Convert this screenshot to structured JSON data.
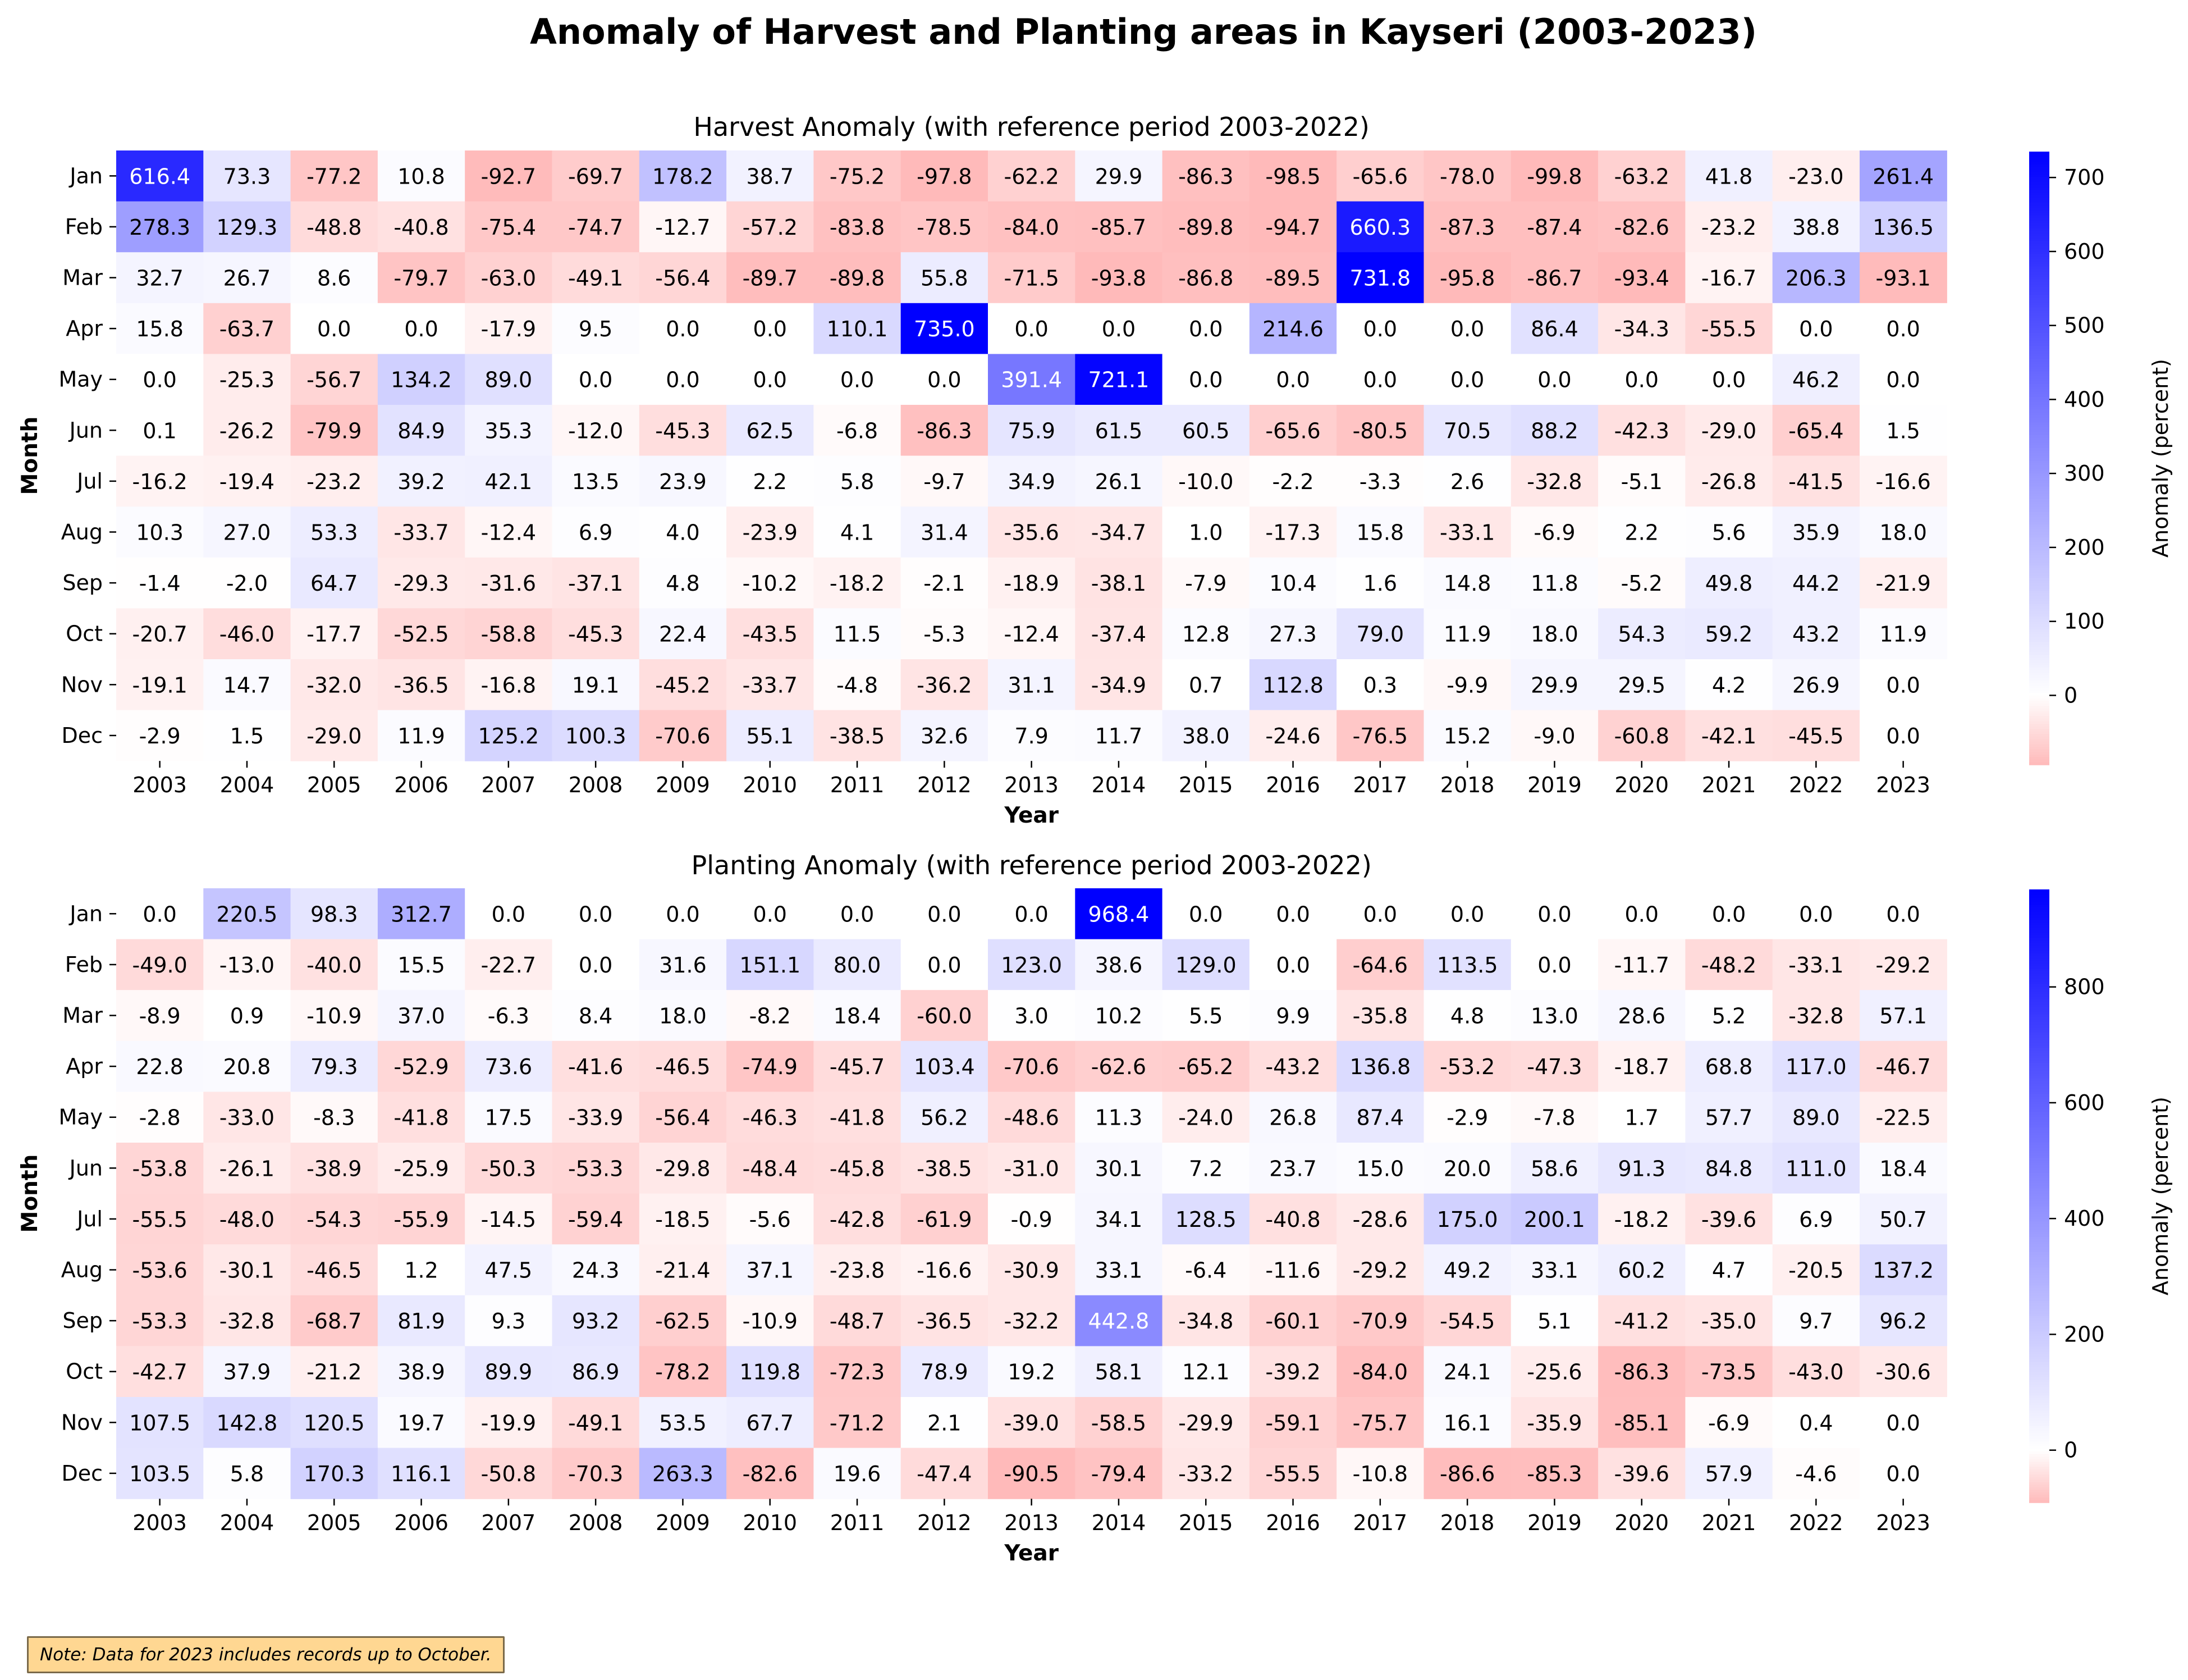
{
  "title": "Anomaly of Harvest and Planting areas in Kayseri (2003-2023)",
  "note": "Note: Data for 2023 includes records up to October.",
  "chart_data": [
    {
      "type": "heatmap",
      "title": "Harvest Anomaly (with reference period 2003-2022)",
      "xlabel": "Year",
      "ylabel": "Month",
      "colorbar_label": "Anomaly (percent)",
      "colorbar_ticks": [
        0,
        100,
        200,
        300,
        400,
        500,
        600,
        700
      ],
      "vmin": -93.8,
      "vmax": 735.0,
      "colormap": [
        "#ff0000",
        "#ffffff",
        "#0000ff"
      ],
      "x": [
        "2003",
        "2004",
        "2005",
        "2006",
        "2007",
        "2008",
        "2009",
        "2010",
        "2011",
        "2012",
        "2013",
        "2014",
        "2015",
        "2016",
        "2017",
        "2018",
        "2019",
        "2020",
        "2021",
        "2022",
        "2023"
      ],
      "y": [
        "Jan",
        "Feb",
        "Mar",
        "Apr",
        "May",
        "Jun",
        "Jul",
        "Aug",
        "Sep",
        "Oct",
        "Nov",
        "Dec"
      ],
      "values": [
        [
          616.4,
          73.3,
          -77.2,
          10.8,
          -92.7,
          -69.7,
          178.2,
          38.7,
          -75.2,
          -97.8,
          -62.2,
          29.9,
          -86.3,
          -98.5,
          -65.6,
          -78.0,
          -99.8,
          -63.2,
          41.8,
          -23.0,
          261.4
        ],
        [
          278.3,
          129.3,
          -48.8,
          -40.8,
          -75.4,
          -74.7,
          -12.7,
          -57.2,
          -83.8,
          -78.5,
          -84.0,
          -85.7,
          -89.8,
          -94.7,
          660.3,
          -87.3,
          -87.4,
          -82.6,
          -23.2,
          38.8,
          136.5
        ],
        [
          32.7,
          26.7,
          8.6,
          -79.7,
          -63.0,
          -49.1,
          -56.4,
          -89.7,
          -89.8,
          55.8,
          -71.5,
          -93.8,
          -86.8,
          -89.5,
          731.8,
          -95.8,
          -86.7,
          -93.4,
          -16.7,
          206.3,
          -93.1
        ],
        [
          15.8,
          -63.7,
          0.0,
          0.0,
          -17.9,
          9.5,
          0.0,
          0.0,
          110.1,
          735.0,
          0.0,
          0.0,
          0.0,
          214.6,
          0.0,
          0.0,
          86.4,
          -34.3,
          -55.5,
          0.0,
          0.0
        ],
        [
          0.0,
          -25.3,
          -56.7,
          134.2,
          89.0,
          0.0,
          0.0,
          0.0,
          0.0,
          0.0,
          391.4,
          721.1,
          0.0,
          0.0,
          0.0,
          0.0,
          0.0,
          0.0,
          0.0,
          46.2,
          0.0
        ],
        [
          0.1,
          -26.2,
          -79.9,
          84.9,
          35.3,
          -12.0,
          -45.3,
          62.5,
          -6.8,
          -86.3,
          75.9,
          61.5,
          60.5,
          -65.6,
          -80.5,
          70.5,
          88.2,
          -42.3,
          -29.0,
          -65.4,
          1.5
        ],
        [
          -16.2,
          -19.4,
          -23.2,
          39.2,
          42.1,
          13.5,
          23.9,
          2.2,
          5.8,
          -9.7,
          34.9,
          26.1,
          -10.0,
          -2.2,
          -3.3,
          2.6,
          -32.8,
          -5.1,
          -26.8,
          -41.5,
          -16.6
        ],
        [
          10.3,
          27.0,
          53.3,
          -33.7,
          -12.4,
          6.9,
          4.0,
          -23.9,
          4.1,
          31.4,
          -35.6,
          -34.7,
          1.0,
          -17.3,
          15.8,
          -33.1,
          -6.9,
          2.2,
          5.6,
          35.9,
          18.0
        ],
        [
          -1.4,
          -2.0,
          64.7,
          -29.3,
          -31.6,
          -37.1,
          4.8,
          -10.2,
          -18.2,
          -2.1,
          -18.9,
          -38.1,
          -7.9,
          10.4,
          1.6,
          14.8,
          11.8,
          -5.2,
          49.8,
          44.2,
          -21.9
        ],
        [
          -20.7,
          -46.0,
          -17.7,
          -52.5,
          -58.8,
          -45.3,
          22.4,
          -43.5,
          11.5,
          -5.3,
          -12.4,
          -37.4,
          12.8,
          27.3,
          79.0,
          11.9,
          18.0,
          54.3,
          59.2,
          43.2,
          11.9
        ],
        [
          -19.1,
          14.7,
          -32.0,
          -36.5,
          -16.8,
          19.1,
          -45.2,
          -33.7,
          -4.8,
          -36.2,
          31.1,
          -34.9,
          0.7,
          112.8,
          0.3,
          -9.9,
          29.9,
          29.5,
          4.2,
          26.9,
          0.0
        ],
        [
          -2.9,
          1.5,
          -29.0,
          11.9,
          125.2,
          100.3,
          -70.6,
          55.1,
          -38.5,
          32.6,
          7.9,
          11.7,
          38.0,
          -24.6,
          -76.5,
          15.2,
          -9.0,
          -60.8,
          -42.1,
          -45.5,
          0.0
        ]
      ]
    },
    {
      "type": "heatmap",
      "title": "Planting Anomaly (with reference period 2003-2022)",
      "xlabel": "Year",
      "ylabel": "Month",
      "colorbar_label": "Anomaly (percent)",
      "colorbar_ticks": [
        0,
        200,
        400,
        600,
        800
      ],
      "vmin": -90.5,
      "vmax": 968.4,
      "colormap": [
        "#ff0000",
        "#ffffff",
        "#0000ff"
      ],
      "x": [
        "2003",
        "2004",
        "2005",
        "2006",
        "2007",
        "2008",
        "2009",
        "2010",
        "2011",
        "2012",
        "2013",
        "2014",
        "2015",
        "2016",
        "2017",
        "2018",
        "2019",
        "2020",
        "2021",
        "2022",
        "2023"
      ],
      "y": [
        "Jan",
        "Feb",
        "Mar",
        "Apr",
        "May",
        "Jun",
        "Jul",
        "Aug",
        "Sep",
        "Oct",
        "Nov",
        "Dec"
      ],
      "values": [
        [
          0.0,
          220.5,
          98.3,
          312.7,
          0.0,
          0.0,
          0.0,
          0.0,
          0.0,
          0.0,
          0.0,
          968.4,
          0.0,
          0.0,
          0.0,
          0.0,
          0.0,
          0.0,
          0.0,
          0.0,
          0.0
        ],
        [
          -49.0,
          -13.0,
          -40.0,
          15.5,
          -22.7,
          0.0,
          31.6,
          151.1,
          80.0,
          0.0,
          123.0,
          38.6,
          129.0,
          0.0,
          -64.6,
          113.5,
          0.0,
          -11.7,
          -48.2,
          -33.1,
          -29.2
        ],
        [
          -8.9,
          0.9,
          -10.9,
          37.0,
          -6.3,
          8.4,
          18.0,
          -8.2,
          18.4,
          -60.0,
          3.0,
          10.2,
          5.5,
          9.9,
          -35.8,
          4.8,
          13.0,
          28.6,
          5.2,
          -32.8,
          57.1
        ],
        [
          22.8,
          20.8,
          79.3,
          -52.9,
          73.6,
          -41.6,
          -46.5,
          -74.9,
          -45.7,
          103.4,
          -70.6,
          -62.6,
          -65.2,
          -43.2,
          136.8,
          -53.2,
          -47.3,
          -18.7,
          68.8,
          117.0,
          -46.7
        ],
        [
          -2.8,
          -33.0,
          -8.3,
          -41.8,
          17.5,
          -33.9,
          -56.4,
          -46.3,
          -41.8,
          56.2,
          -48.6,
          11.3,
          -24.0,
          26.8,
          87.4,
          -2.9,
          -7.8,
          1.7,
          57.7,
          89.0,
          -22.5
        ],
        [
          -53.8,
          -26.1,
          -38.9,
          -25.9,
          -50.3,
          -53.3,
          -29.8,
          -48.4,
          -45.8,
          -38.5,
          -31.0,
          30.1,
          7.2,
          23.7,
          15.0,
          20.0,
          58.6,
          91.3,
          84.8,
          111.0,
          18.4
        ],
        [
          -55.5,
          -48.0,
          -54.3,
          -55.9,
          -14.5,
          -59.4,
          -18.5,
          -5.6,
          -42.8,
          -61.9,
          -0.9,
          34.1,
          128.5,
          -40.8,
          -28.6,
          175.0,
          200.1,
          -18.2,
          -39.6,
          6.9,
          50.7
        ],
        [
          -53.6,
          -30.1,
          -46.5,
          1.2,
          47.5,
          24.3,
          -21.4,
          37.1,
          -23.8,
          -16.6,
          -30.9,
          33.1,
          -6.4,
          -11.6,
          -29.2,
          49.2,
          33.1,
          60.2,
          4.7,
          -20.5,
          137.2
        ],
        [
          -53.3,
          -32.8,
          -68.7,
          81.9,
          9.3,
          93.2,
          -62.5,
          -10.9,
          -48.7,
          -36.5,
          -32.2,
          442.8,
          -34.8,
          -60.1,
          -70.9,
          -54.5,
          5.1,
          -41.2,
          -35.0,
          9.7,
          96.2
        ],
        [
          -42.7,
          37.9,
          -21.2,
          38.9,
          89.9,
          86.9,
          -78.2,
          119.8,
          -72.3,
          78.9,
          19.2,
          58.1,
          12.1,
          -39.2,
          -84.0,
          24.1,
          -25.6,
          -86.3,
          -73.5,
          -43.0,
          -30.6
        ],
        [
          107.5,
          142.8,
          120.5,
          19.7,
          -19.9,
          -49.1,
          53.5,
          67.7,
          -71.2,
          2.1,
          -39.0,
          -58.5,
          -29.9,
          -59.1,
          -75.7,
          16.1,
          -35.9,
          -85.1,
          -6.9,
          0.4,
          0.0
        ],
        [
          103.5,
          5.8,
          170.3,
          116.1,
          -50.8,
          -70.3,
          263.3,
          -82.6,
          19.6,
          -47.4,
          -90.5,
          -79.4,
          -33.2,
          -55.5,
          -10.8,
          -86.6,
          -85.3,
          -39.6,
          57.9,
          -4.6,
          0.0
        ]
      ]
    }
  ]
}
